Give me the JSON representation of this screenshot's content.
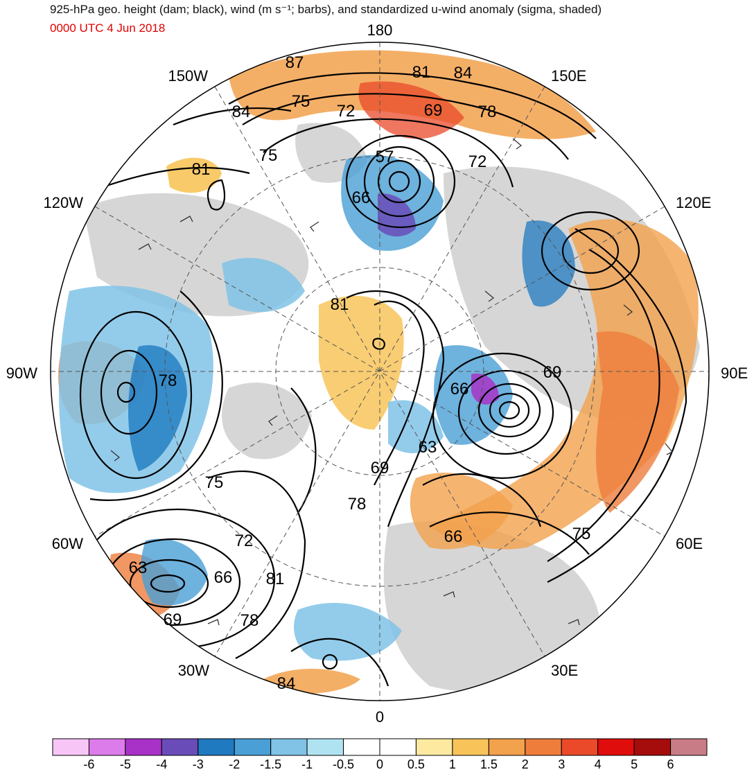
{
  "header": {
    "title": "925-hPa geo. height (dam; black), wind (m s⁻¹; barbs), and standardized u-wind anomaly (sigma, shaded)",
    "valid_time": "0000 UTC 4 Jun 2018"
  },
  "longitude_labels": [
    "180",
    "150E",
    "120E",
    "90E",
    "60E",
    "30E",
    "0",
    "30W",
    "60W",
    "90W",
    "120W",
    "150W"
  ],
  "contour_labels": [
    "87",
    "81",
    "84",
    "75",
    "72",
    "69",
    "78",
    "84",
    "75",
    "72",
    "57",
    "81",
    "66",
    "81",
    "66",
    "69",
    "63",
    "78",
    "69",
    "75",
    "78",
    "66",
    "75",
    "72",
    "63",
    "66",
    "81",
    "69",
    "78",
    "84"
  ],
  "colorbar": {
    "labels": [
      "-6",
      "-5",
      "-4",
      "-3",
      "-2",
      "-1.5",
      "-1",
      "-0.5",
      "0",
      "0.5",
      "1",
      "1.5",
      "2",
      "3",
      "4",
      "5",
      "6"
    ],
    "colors": [
      "#f7c6f7",
      "#dc7cea",
      "#a832c8",
      "#6a4cb8",
      "#1f7ac0",
      "#4a9fd6",
      "#80c3e6",
      "#b0e3f2",
      "#ffffff",
      "#ffffff",
      "#fde9a0",
      "#f8c45a",
      "#f2a14c",
      "#ee7d3c",
      "#ea4a2a",
      "#e00d0d",
      "#a50c0c",
      "#c87c86"
    ]
  },
  "colors": {
    "title_time": "#e00000",
    "land_gray": "#cfcfcf",
    "contour": "#000000"
  }
}
